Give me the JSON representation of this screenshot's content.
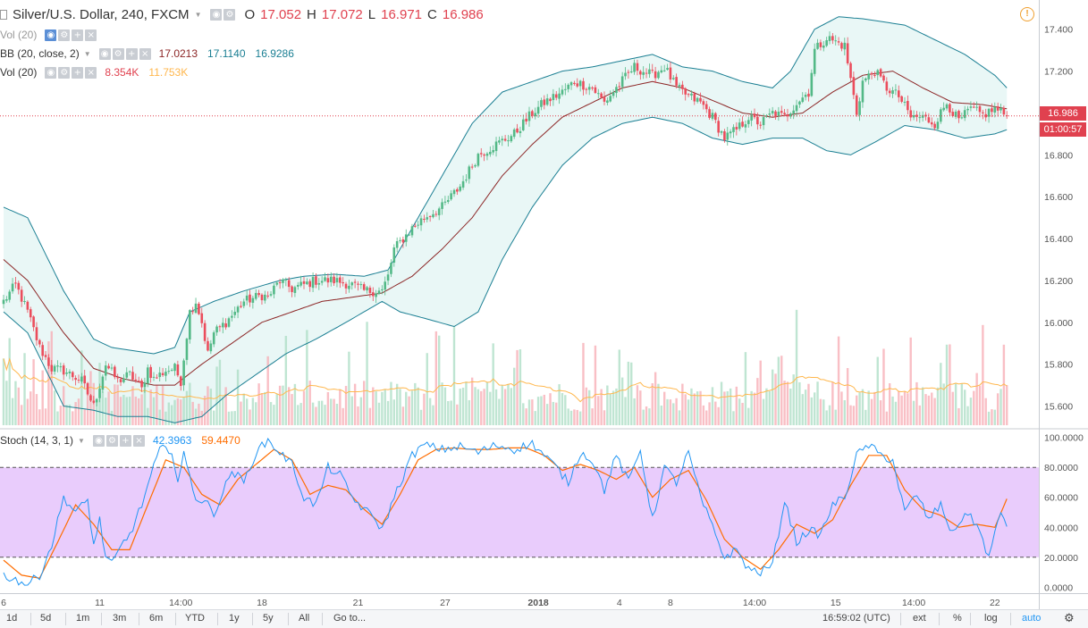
{
  "header": {
    "symbol": "Silver/U.S. Dollar, 240, FXCM",
    "o_label": "O",
    "o_value": "17.052",
    "h_label": "H",
    "h_value": "17.072",
    "l_label": "L",
    "l_value": "16.971",
    "c_label": "C",
    "c_value": "16.986"
  },
  "indicators": {
    "vol_top": {
      "title": "Vol (20)"
    },
    "bb": {
      "title": "BB (20, close, 2)",
      "basis": "17.0213",
      "upper": "17.1140",
      "lower": "16.9286"
    },
    "vol": {
      "title": "Vol (20)",
      "value": "8.354K",
      "ma": "11.753K"
    },
    "stoch": {
      "title": "Stoch (14, 3, 1)",
      "k": "42.3963",
      "d": "59.4470"
    }
  },
  "price_labels": {
    "last": "16.986",
    "countdown": "01:00:57"
  },
  "toolbar": {
    "ranges": [
      "1d",
      "5d",
      "1m",
      "3m",
      "6m",
      "YTD",
      "1y",
      "5y",
      "All"
    ],
    "goto": "Go to...",
    "time": "16:59:02 (UTC)",
    "ext": "ext",
    "pct": "%",
    "log": "log",
    "auto": "auto"
  },
  "colors": {
    "up": "#53b987",
    "down": "#eb4d5c",
    "bb_band": "#1b7f93",
    "bb_basis": "#8c2626",
    "stoch_k": "#2196f3",
    "stoch_d": "#ff6d00",
    "stoch_fill": "#e9ccfc",
    "vol_ma": "#ffb74d"
  },
  "chart_data": [
    {
      "type": "candlestick",
      "title": "Silver/U.S. Dollar, 240, FXCM",
      "x_tick_labels": [
        "6",
        "11",
        "14:00",
        "18",
        "21",
        "27",
        "2018",
        "4",
        "8",
        "14:00",
        "15",
        "14:00",
        "22"
      ],
      "y_ticks": [
        15.6,
        15.8,
        16.0,
        16.2,
        16.4,
        16.6,
        16.8,
        17.0,
        17.2,
        17.4
      ],
      "ylim": [
        15.5,
        17.48
      ],
      "last_price": 16.986,
      "close_anchors": [
        [
          0,
          16.1
        ],
        [
          4,
          16.18
        ],
        [
          8,
          16.05
        ],
        [
          12,
          15.88
        ],
        [
          16,
          15.78
        ],
        [
          20,
          15.77
        ],
        [
          26,
          15.72
        ],
        [
          30,
          15.6
        ],
        [
          34,
          15.8
        ],
        [
          38,
          15.72
        ],
        [
          42,
          15.75
        ],
        [
          44,
          15.72
        ],
        [
          46,
          15.68
        ],
        [
          48,
          15.78
        ],
        [
          50,
          15.73
        ],
        [
          54,
          15.77
        ],
        [
          57,
          15.78
        ],
        [
          59,
          15.72
        ],
        [
          62,
          16.05
        ],
        [
          64,
          16.1
        ],
        [
          66,
          16.0
        ],
        [
          68,
          15.85
        ],
        [
          70,
          15.95
        ],
        [
          74,
          16.0
        ],
        [
          80,
          16.1
        ],
        [
          86,
          16.13
        ],
        [
          88,
          16.12
        ],
        [
          92,
          16.2
        ],
        [
          96,
          16.16
        ],
        [
          100,
          16.18
        ],
        [
          104,
          16.2
        ],
        [
          110,
          16.2
        ],
        [
          116,
          16.18
        ],
        [
          120,
          16.15
        ],
        [
          126,
          16.15
        ],
        [
          128,
          16.22
        ],
        [
          130,
          16.35
        ],
        [
          136,
          16.45
        ],
        [
          140,
          16.5
        ],
        [
          146,
          16.55
        ],
        [
          152,
          16.65
        ],
        [
          158,
          16.8
        ],
        [
          164,
          16.85
        ],
        [
          170,
          16.9
        ],
        [
          176,
          17.0
        ],
        [
          180,
          17.05
        ],
        [
          186,
          17.1
        ],
        [
          190,
          17.15
        ],
        [
          196,
          17.12
        ],
        [
          200,
          17.05
        ],
        [
          204,
          17.12
        ],
        [
          210,
          17.22
        ],
        [
          216,
          17.18
        ],
        [
          220,
          17.22
        ],
        [
          224,
          17.12
        ],
        [
          228,
          17.08
        ],
        [
          232,
          17.05
        ],
        [
          236,
          16.98
        ],
        [
          240,
          16.88
        ],
        [
          244,
          16.92
        ],
        [
          248,
          16.98
        ],
        [
          252,
          16.95
        ],
        [
          256,
          17.0
        ],
        [
          260,
          16.98
        ],
        [
          264,
          17.05
        ],
        [
          268,
          17.1
        ],
        [
          270,
          17.3
        ],
        [
          274,
          17.36
        ],
        [
          280,
          17.32
        ],
        [
          284,
          17.0
        ],
        [
          286,
          17.15
        ],
        [
          290,
          17.2
        ],
        [
          294,
          17.12
        ],
        [
          298,
          17.08
        ],
        [
          302,
          16.98
        ],
        [
          306,
          16.98
        ],
        [
          310,
          16.95
        ],
        [
          314,
          17.05
        ],
        [
          318,
          16.96
        ],
        [
          322,
          17.02
        ],
        [
          326,
          16.99
        ],
        [
          330,
          17.02
        ],
        [
          334,
          16.986
        ]
      ],
      "bb_upper_anchors": [
        [
          0,
          16.55
        ],
        [
          8,
          16.5
        ],
        [
          20,
          16.15
        ],
        [
          30,
          15.92
        ],
        [
          36,
          15.88
        ],
        [
          50,
          15.85
        ],
        [
          57,
          15.88
        ],
        [
          62,
          16.05
        ],
        [
          70,
          16.1
        ],
        [
          80,
          16.15
        ],
        [
          92,
          16.2
        ],
        [
          100,
          16.22
        ],
        [
          110,
          16.23
        ],
        [
          120,
          16.22
        ],
        [
          128,
          16.25
        ],
        [
          136,
          16.45
        ],
        [
          146,
          16.7
        ],
        [
          156,
          16.95
        ],
        [
          166,
          17.1
        ],
        [
          176,
          17.15
        ],
        [
          186,
          17.2
        ],
        [
          196,
          17.22
        ],
        [
          206,
          17.25
        ],
        [
          216,
          17.28
        ],
        [
          226,
          17.22
        ],
        [
          236,
          17.2
        ],
        [
          246,
          17.15
        ],
        [
          256,
          17.12
        ],
        [
          262,
          17.2
        ],
        [
          270,
          17.4
        ],
        [
          278,
          17.46
        ],
        [
          286,
          17.45
        ],
        [
          300,
          17.42
        ],
        [
          310,
          17.35
        ],
        [
          320,
          17.28
        ],
        [
          330,
          17.18
        ],
        [
          334,
          17.12
        ]
      ],
      "bb_lower_anchors": [
        [
          0,
          16.05
        ],
        [
          8,
          15.95
        ],
        [
          20,
          15.6
        ],
        [
          30,
          15.58
        ],
        [
          38,
          15.55
        ],
        [
          48,
          15.55
        ],
        [
          57,
          15.52
        ],
        [
          66,
          15.55
        ],
        [
          74,
          15.65
        ],
        [
          84,
          15.75
        ],
        [
          94,
          15.85
        ],
        [
          104,
          15.92
        ],
        [
          114,
          16.0
        ],
        [
          120,
          16.05
        ],
        [
          126,
          16.1
        ],
        [
          132,
          16.05
        ],
        [
          140,
          16.02
        ],
        [
          150,
          15.98
        ],
        [
          158,
          16.05
        ],
        [
          166,
          16.3
        ],
        [
          176,
          16.55
        ],
        [
          186,
          16.75
        ],
        [
          196,
          16.88
        ],
        [
          206,
          16.95
        ],
        [
          216,
          16.98
        ],
        [
          226,
          16.95
        ],
        [
          236,
          16.88
        ],
        [
          246,
          16.85
        ],
        [
          256,
          16.88
        ],
        [
          266,
          16.88
        ],
        [
          274,
          16.82
        ],
        [
          282,
          16.8
        ],
        [
          290,
          16.86
        ],
        [
          300,
          16.94
        ],
        [
          310,
          16.92
        ],
        [
          320,
          16.88
        ],
        [
          330,
          16.9
        ],
        [
          334,
          16.92
        ]
      ],
      "bb_basis_anchors": [
        [
          0,
          16.3
        ],
        [
          8,
          16.2
        ],
        [
          20,
          15.95
        ],
        [
          30,
          15.78
        ],
        [
          40,
          15.73
        ],
        [
          50,
          15.7
        ],
        [
          57,
          15.7
        ],
        [
          66,
          15.8
        ],
        [
          76,
          15.9
        ],
        [
          86,
          16.0
        ],
        [
          96,
          16.05
        ],
        [
          106,
          16.1
        ],
        [
          116,
          16.12
        ],
        [
          126,
          16.14
        ],
        [
          136,
          16.22
        ],
        [
          146,
          16.35
        ],
        [
          156,
          16.5
        ],
        [
          166,
          16.7
        ],
        [
          176,
          16.85
        ],
        [
          186,
          16.98
        ],
        [
          196,
          17.05
        ],
        [
          206,
          17.12
        ],
        [
          216,
          17.15
        ],
        [
          226,
          17.12
        ],
        [
          236,
          17.06
        ],
        [
          246,
          17.0
        ],
        [
          256,
          16.98
        ],
        [
          266,
          17.0
        ],
        [
          276,
          17.1
        ],
        [
          286,
          17.18
        ],
        [
          296,
          17.2
        ],
        [
          306,
          17.12
        ],
        [
          316,
          17.05
        ],
        [
          326,
          17.04
        ],
        [
          334,
          17.02
        ]
      ]
    },
    {
      "type": "bar",
      "title": "Vol (20)",
      "value": "8.354K",
      "ma": "11.753K"
    },
    {
      "type": "line",
      "title": "Stoch (14, 3, 1)",
      "y_ticks": [
        0,
        20,
        40,
        60,
        80,
        100
      ],
      "ylim": [
        -4,
        104
      ],
      "bands": [
        20,
        80
      ],
      "series": [
        {
          "name": "%K",
          "last": 42.3963
        },
        {
          "name": "%D",
          "last": 59.447
        }
      ],
      "k_anchors": [
        [
          0,
          8
        ],
        [
          4,
          5
        ],
        [
          8,
          2
        ],
        [
          12,
          8
        ],
        [
          16,
          28
        ],
        [
          20,
          60
        ],
        [
          24,
          50
        ],
        [
          28,
          58
        ],
        [
          30,
          28
        ],
        [
          32,
          45
        ],
        [
          34,
          20
        ],
        [
          36,
          15
        ],
        [
          40,
          30
        ],
        [
          42,
          35
        ],
        [
          46,
          55
        ],
        [
          50,
          80
        ],
        [
          52,
          92
        ],
        [
          56,
          92
        ],
        [
          58,
          70
        ],
        [
          60,
          88
        ],
        [
          64,
          60
        ],
        [
          68,
          55
        ],
        [
          70,
          50
        ],
        [
          72,
          58
        ],
        [
          76,
          78
        ],
        [
          80,
          70
        ],
        [
          84,
          90
        ],
        [
          88,
          98
        ],
        [
          92,
          90
        ],
        [
          96,
          82
        ],
        [
          100,
          60
        ],
        [
          104,
          55
        ],
        [
          108,
          80
        ],
        [
          112,
          75
        ],
        [
          116,
          60
        ],
        [
          120,
          52
        ],
        [
          124,
          45
        ],
        [
          126,
          38
        ],
        [
          130,
          60
        ],
        [
          136,
          88
        ],
        [
          140,
          95
        ],
        [
          146,
          92
        ],
        [
          152,
          94
        ],
        [
          158,
          90
        ],
        [
          164,
          95
        ],
        [
          170,
          92
        ],
        [
          176,
          96
        ],
        [
          180,
          88
        ],
        [
          184,
          80
        ],
        [
          188,
          70
        ],
        [
          192,
          90
        ],
        [
          196,
          85
        ],
        [
          200,
          65
        ],
        [
          204,
          88
        ],
        [
          208,
          70
        ],
        [
          212,
          92
        ],
        [
          216,
          45
        ],
        [
          220,
          80
        ],
        [
          224,
          70
        ],
        [
          228,
          90
        ],
        [
          232,
          60
        ],
        [
          236,
          40
        ],
        [
          240,
          20
        ],
        [
          244,
          25
        ],
        [
          248,
          12
        ],
        [
          252,
          10
        ],
        [
          256,
          15
        ],
        [
          260,
          58
        ],
        [
          264,
          30
        ],
        [
          268,
          38
        ],
        [
          272,
          35
        ],
        [
          276,
          55
        ],
        [
          280,
          60
        ],
        [
          284,
          88
        ],
        [
          288,
          95
        ],
        [
          292,
          88
        ],
        [
          296,
          85
        ],
        [
          300,
          50
        ],
        [
          304,
          62
        ],
        [
          308,
          45
        ],
        [
          312,
          55
        ],
        [
          316,
          35
        ],
        [
          320,
          50
        ],
        [
          324,
          42
        ],
        [
          328,
          20
        ],
        [
          332,
          50
        ],
        [
          334,
          42
        ]
      ],
      "d_anchors": [
        [
          0,
          18
        ],
        [
          6,
          8
        ],
        [
          12,
          6
        ],
        [
          18,
          30
        ],
        [
          24,
          55
        ],
        [
          30,
          42
        ],
        [
          36,
          25
        ],
        [
          42,
          25
        ],
        [
          48,
          55
        ],
        [
          54,
          85
        ],
        [
          60,
          80
        ],
        [
          66,
          62
        ],
        [
          72,
          55
        ],
        [
          78,
          72
        ],
        [
          84,
          82
        ],
        [
          90,
          92
        ],
        [
          96,
          85
        ],
        [
          102,
          62
        ],
        [
          108,
          68
        ],
        [
          114,
          65
        ],
        [
          120,
          52
        ],
        [
          126,
          42
        ],
        [
          132,
          62
        ],
        [
          138,
          85
        ],
        [
          144,
          92
        ],
        [
          150,
          93
        ],
        [
          156,
          92
        ],
        [
          162,
          92
        ],
        [
          168,
          93
        ],
        [
          174,
          93
        ],
        [
          180,
          88
        ],
        [
          186,
          78
        ],
        [
          192,
          82
        ],
        [
          198,
          78
        ],
        [
          204,
          72
        ],
        [
          210,
          80
        ],
        [
          216,
          60
        ],
        [
          222,
          72
        ],
        [
          228,
          78
        ],
        [
          234,
          58
        ],
        [
          240,
          32
        ],
        [
          246,
          20
        ],
        [
          252,
          12
        ],
        [
          258,
          25
        ],
        [
          264,
          42
        ],
        [
          270,
          36
        ],
        [
          276,
          45
        ],
        [
          282,
          68
        ],
        [
          288,
          88
        ],
        [
          294,
          88
        ],
        [
          300,
          65
        ],
        [
          306,
          52
        ],
        [
          312,
          48
        ],
        [
          318,
          40
        ],
        [
          324,
          42
        ],
        [
          330,
          40
        ],
        [
          334,
          59
        ]
      ]
    }
  ]
}
